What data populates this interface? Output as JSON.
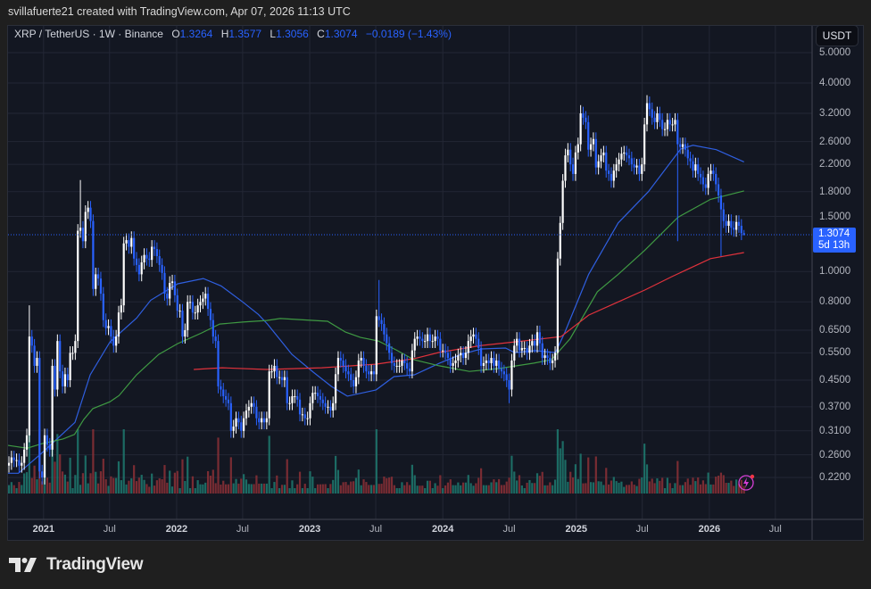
{
  "credit": "svillafuerte21 created with TradingView.com, Apr 07, 2026 11:13 UTC",
  "legend": {
    "symbol": "XRP / TetherUS · 1W · Binance",
    "o_label": "O",
    "o": "1.3264",
    "h_label": "H",
    "h": "1.3577",
    "l_label": "L",
    "l": "1.3056",
    "c_label": "C",
    "c": "1.3074",
    "change": "−0.0189 (−1.43%)"
  },
  "currency_button": "USDT",
  "last_price": {
    "value": "1.3074",
    "countdown": "5d 13h"
  },
  "logo_text": "TradingView",
  "colors": {
    "up": "#ffffff",
    "down": "#2962ff",
    "ma_blue": "#2f5fe0",
    "ma_green": "#3f9a43",
    "ma_red": "#e0323c",
    "vol_up": "#1f7a70",
    "vol_down": "#8c3036",
    "background": "#131722"
  },
  "chart_data": {
    "type": "candlestick",
    "scale": "log",
    "interval": "1W",
    "first_week": "2020-09-28",
    "ylim": [
      0.19,
      5.6
    ],
    "grid": true,
    "y_ticks": [
      "5.0000",
      "4.0000",
      "3.2000",
      "2.6000",
      "2.2000",
      "1.8000",
      "1.5000",
      "1.0000",
      "0.8000",
      "0.6500",
      "0.5500",
      "0.4500",
      "0.3700",
      "0.3100",
      "0.2600",
      "0.2200"
    ],
    "x_ticks": [
      {
        "label": "2021",
        "date": "2021-01-01",
        "year": true
      },
      {
        "label": "Jul",
        "date": "2021-07-01"
      },
      {
        "label": "2022",
        "date": "2022-01-01",
        "year": true
      },
      {
        "label": "Jul",
        "date": "2022-07-01"
      },
      {
        "label": "2023",
        "date": "2023-01-01",
        "year": true
      },
      {
        "label": "Jul",
        "date": "2023-07-01"
      },
      {
        "label": "2024",
        "date": "2024-01-01",
        "year": true
      },
      {
        "label": "Jul",
        "date": "2024-07-01"
      },
      {
        "label": "2025",
        "date": "2025-01-01",
        "year": true
      },
      {
        "label": "Jul",
        "date": "2025-07-01"
      },
      {
        "label": "2026",
        "date": "2026-01-01",
        "year": true
      },
      {
        "label": "Jul",
        "date": "2026-07-01"
      }
    ],
    "close": [
      0.245,
      0.255,
      0.25,
      0.25,
      0.24,
      0.245,
      0.27,
      0.3,
      0.62,
      0.58,
      0.5,
      0.53,
      0.23,
      0.22,
      0.3,
      0.28,
      0.27,
      0.5,
      0.42,
      0.6,
      0.48,
      0.43,
      0.47,
      0.45,
      0.55,
      0.55,
      0.6,
      1.35,
      1.38,
      1.25,
      1.55,
      1.6,
      1.45,
      0.88,
      0.98,
      0.95,
      0.85,
      0.7,
      0.66,
      0.67,
      0.62,
      0.58,
      0.62,
      0.74,
      0.78,
      1.23,
      1.26,
      1.2,
      1.28,
      1.1,
      1.05,
      0.98,
      1.07,
      1.13,
      1.1,
      1.09,
      1.2,
      1.18,
      1.12,
      1.05,
      0.99,
      0.85,
      0.82,
      0.92,
      0.93,
      0.84,
      0.75,
      0.75,
      0.62,
      0.65,
      0.8,
      0.8,
      0.74,
      0.74,
      0.78,
      0.8,
      0.82,
      0.85,
      0.76,
      0.7,
      0.62,
      0.6,
      0.43,
      0.42,
      0.4,
      0.39,
      0.38,
      0.31,
      0.32,
      0.34,
      0.33,
      0.31,
      0.34,
      0.36,
      0.37,
      0.38,
      0.37,
      0.34,
      0.33,
      0.34,
      0.33,
      0.34,
      0.48,
      0.48,
      0.5,
      0.46,
      0.46,
      0.45,
      0.46,
      0.38,
      0.38,
      0.4,
      0.4,
      0.39,
      0.35,
      0.35,
      0.34,
      0.34,
      0.38,
      0.41,
      0.41,
      0.4,
      0.39,
      0.38,
      0.37,
      0.37,
      0.36,
      0.38,
      0.47,
      0.53,
      0.52,
      0.5,
      0.48,
      0.47,
      0.45,
      0.43,
      0.46,
      0.52,
      0.53,
      0.5,
      0.48,
      0.47,
      0.48,
      0.47,
      0.72,
      0.7,
      0.68,
      0.63,
      0.59,
      0.55,
      0.51,
      0.5,
      0.5,
      0.5,
      0.52,
      0.51,
      0.49,
      0.48,
      0.56,
      0.61,
      0.62,
      0.61,
      0.6,
      0.6,
      0.63,
      0.6,
      0.6,
      0.62,
      0.61,
      0.56,
      0.56,
      0.55,
      0.53,
      0.5,
      0.51,
      0.52,
      0.54,
      0.55,
      0.53,
      0.55,
      0.6,
      0.62,
      0.63,
      0.61,
      0.57,
      0.5,
      0.51,
      0.52,
      0.51,
      0.53,
      0.5,
      0.52,
      0.49,
      0.48,
      0.47,
      0.45,
      0.42,
      0.52,
      0.58,
      0.61,
      0.56,
      0.57,
      0.57,
      0.55,
      0.58,
      0.6,
      0.58,
      0.64,
      0.59,
      0.53,
      0.54,
      0.53,
      0.51,
      0.52,
      0.55,
      1.1,
      1.43,
      1.95,
      2.35,
      2.45,
      2.2,
      2.05,
      2.4,
      2.55,
      3.2,
      3.1,
      3.0,
      2.45,
      2.55,
      2.65,
      2.15,
      2.25,
      2.35,
      2.4,
      2.1,
      2.05,
      1.95,
      2.1,
      2.2,
      2.28,
      2.38,
      2.4,
      2.35,
      2.3,
      2.2,
      2.15,
      2.18,
      2.05,
      2.2,
      2.95,
      3.45,
      3.3,
      3.1,
      3.0,
      3.2,
      3.05,
      2.85,
      2.85,
      3.05,
      2.95,
      2.95,
      3.05,
      2.55,
      2.5,
      2.55,
      2.45,
      2.3,
      2.25,
      2.1,
      2.2,
      2.05,
      2.0,
      1.9,
      1.85,
      2.05,
      2.1,
      2.05,
      1.9,
      1.75,
      1.58,
      1.45,
      1.4,
      1.45,
      1.38,
      1.36,
      1.44,
      1.4,
      1.3264,
      1.3074
    ],
    "wicks": [
      {
        "date": "2020-11-23",
        "high": 0.78
      },
      {
        "date": "2021-04-12",
        "high": 1.96
      },
      {
        "date": "2023-07-10",
        "high": 0.94
      },
      {
        "date": "2024-07-01",
        "low": 0.38
      },
      {
        "date": "2025-01-13",
        "high": 3.4
      },
      {
        "date": "2025-07-14",
        "high": 3.66
      },
      {
        "date": "2025-10-06",
        "low": 1.25
      },
      {
        "date": "2026-02-02",
        "low": 1.12
      },
      {
        "date": "2026-04-06",
        "open": 1.3264,
        "high": 1.3577,
        "low": 1.3056
      }
    ],
    "moving_averages": [
      {
        "color_key": "ma_blue",
        "points": [
          [
            "2020-09-25",
            0.227
          ],
          [
            "2020-10-24",
            0.227
          ],
          [
            "2020-12-22",
            0.26
          ],
          [
            "2021-03-28",
            0.33
          ],
          [
            "2021-05-09",
            0.468
          ],
          [
            "2021-07-02",
            0.596
          ],
          [
            "2021-09-13",
            0.71
          ],
          [
            "2021-10-22",
            0.81
          ],
          [
            "2022-01-04",
            0.914
          ],
          [
            "2022-03-15",
            0.95
          ],
          [
            "2022-05-03",
            0.9
          ],
          [
            "2022-07-01",
            0.8
          ],
          [
            "2022-08-13",
            0.73
          ],
          [
            "2022-09-07",
            0.68
          ],
          [
            "2022-11-13",
            0.544
          ],
          [
            "2023-01-11",
            0.477
          ],
          [
            "2023-03-01",
            0.43
          ],
          [
            "2023-04-14",
            0.4
          ],
          [
            "2023-07-02",
            0.419
          ],
          [
            "2023-08-20",
            0.462
          ],
          [
            "2023-10-15",
            0.468
          ],
          [
            "2023-12-23",
            0.51
          ],
          [
            "2024-02-20",
            0.544
          ],
          [
            "2024-04-16",
            0.566
          ],
          [
            "2024-06-21",
            0.57
          ],
          [
            "2024-07-16",
            0.551
          ],
          [
            "2024-09-10",
            0.559
          ],
          [
            "2024-11-05",
            0.551
          ],
          [
            "2024-11-30",
            0.637
          ],
          [
            "2025-02-04",
            0.98
          ],
          [
            "2025-04-26",
            1.43
          ],
          [
            "2025-07-18",
            1.8
          ],
          [
            "2025-10-14",
            2.46
          ],
          [
            "2025-11-17",
            2.53
          ],
          [
            "2026-01-20",
            2.45
          ],
          [
            "2026-04-06",
            2.24
          ]
        ]
      },
      {
        "color_key": "ma_green",
        "points": [
          [
            "2020-09-13",
            0.28
          ],
          [
            "2020-11-17",
            0.273
          ],
          [
            "2020-12-27",
            0.282
          ],
          [
            "2021-02-23",
            0.292
          ],
          [
            "2021-03-27",
            0.302
          ],
          [
            "2021-04-21",
            0.337
          ],
          [
            "2021-05-16",
            0.365
          ],
          [
            "2021-07-02",
            0.384
          ],
          [
            "2021-07-27",
            0.402
          ],
          [
            "2021-09-13",
            0.468
          ],
          [
            "2021-11-13",
            0.544
          ],
          [
            "2022-01-04",
            0.589
          ],
          [
            "2022-03-11",
            0.637
          ],
          [
            "2022-04-29",
            0.68
          ],
          [
            "2022-07-01",
            0.69
          ],
          [
            "2022-09-05",
            0.698
          ],
          [
            "2022-10-12",
            0.708
          ],
          [
            "2023-02-19",
            0.694
          ],
          [
            "2023-04-09",
            0.641
          ],
          [
            "2023-05-20",
            0.616
          ],
          [
            "2023-07-08",
            0.6
          ],
          [
            "2023-08-26",
            0.562
          ],
          [
            "2023-10-14",
            0.523
          ],
          [
            "2023-12-22",
            0.5
          ],
          [
            "2024-03-14",
            0.48
          ],
          [
            "2024-06-02",
            0.49
          ],
          [
            "2024-09-07",
            0.51
          ],
          [
            "2024-10-25",
            0.523
          ],
          [
            "2024-12-15",
            0.61
          ],
          [
            "2025-02-28",
            0.862
          ],
          [
            "2025-04-26",
            0.98
          ],
          [
            "2025-07-08",
            1.17
          ],
          [
            "2025-10-07",
            1.49
          ],
          [
            "2026-01-04",
            1.7
          ],
          [
            "2026-04-06",
            1.81
          ]
        ]
      },
      {
        "color_key": "ma_red",
        "points": [
          [
            "2022-02-17",
            0.487
          ],
          [
            "2022-05-06",
            0.493
          ],
          [
            "2022-09-05",
            0.487
          ],
          [
            "2023-02-03",
            0.493
          ],
          [
            "2023-07-01",
            0.506
          ],
          [
            "2023-10-14",
            0.527
          ],
          [
            "2023-12-22",
            0.552
          ],
          [
            "2024-04-16",
            0.581
          ],
          [
            "2024-07-22",
            0.597
          ],
          [
            "2024-11-20",
            0.62
          ],
          [
            "2025-02-04",
            0.726
          ],
          [
            "2025-04-26",
            0.8
          ],
          [
            "2025-07-08",
            0.873
          ],
          [
            "2025-09-20",
            0.963
          ],
          [
            "2026-01-04",
            1.1
          ],
          [
            "2026-04-06",
            1.15
          ]
        ]
      }
    ]
  }
}
